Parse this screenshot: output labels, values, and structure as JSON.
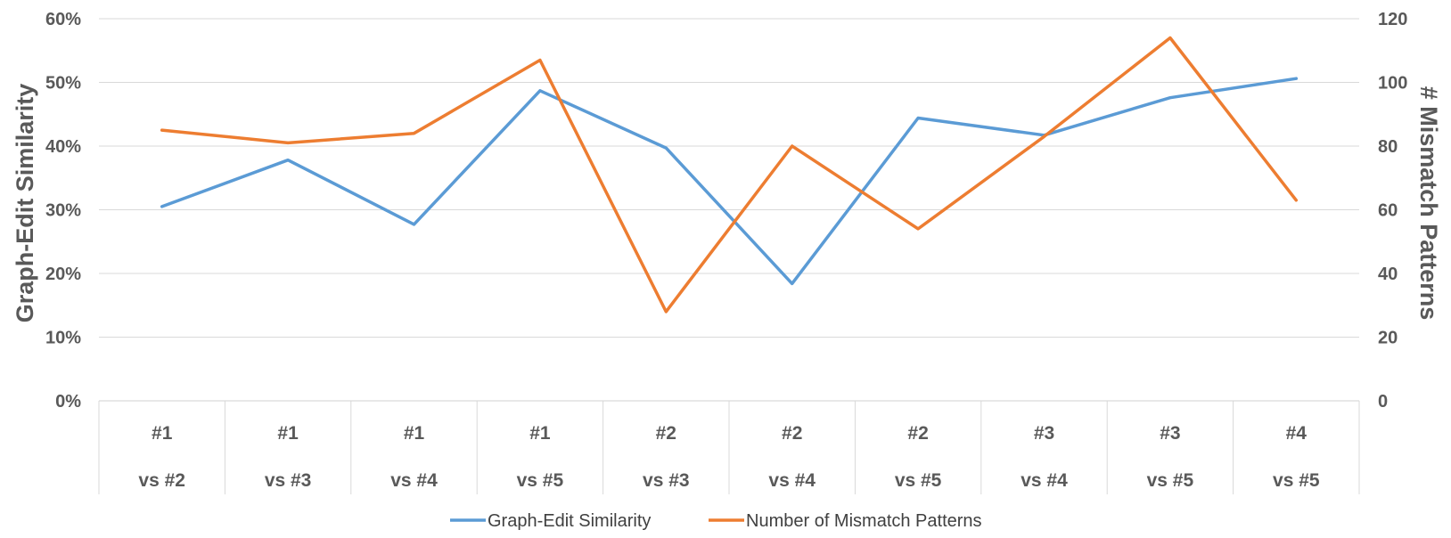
{
  "chart_data": {
    "type": "line",
    "categories": [
      [
        "#1",
        "vs #2"
      ],
      [
        "#1",
        "vs #3"
      ],
      [
        "#1",
        "vs #4"
      ],
      [
        "#1",
        "vs #5"
      ],
      [
        "#2",
        "vs #3"
      ],
      [
        "#2",
        "vs #4"
      ],
      [
        "#2",
        "vs #5"
      ],
      [
        "#3",
        "vs #4"
      ],
      [
        "#3",
        "vs #5"
      ],
      [
        "#4",
        "vs #5"
      ]
    ],
    "ylabel_left": "Graph-Edit Similarity",
    "ylabel_right": "# Mismatch Patterns",
    "ylim_left": [
      0,
      60
    ],
    "yticks_left": [
      "0%",
      "10%",
      "20%",
      "30%",
      "40%",
      "50%",
      "60%"
    ],
    "ylim_right": [
      0,
      120
    ],
    "yticks_right": [
      "0",
      "20",
      "40",
      "60",
      "80",
      "100",
      "120"
    ],
    "grid": true,
    "legend_position": "bottom",
    "series": [
      {
        "name": "Graph-Edit Similarity",
        "axis": "left",
        "color": "#5B9BD5",
        "values": [
          30.5,
          37.8,
          27.7,
          48.7,
          39.7,
          18.4,
          44.4,
          41.7,
          47.6,
          50.6
        ]
      },
      {
        "name": "Number of Mismatch Patterns",
        "axis": "right",
        "color": "#ED7D31",
        "values": [
          85,
          81,
          84,
          107,
          28,
          80,
          54,
          83,
          114,
          63
        ]
      }
    ]
  }
}
